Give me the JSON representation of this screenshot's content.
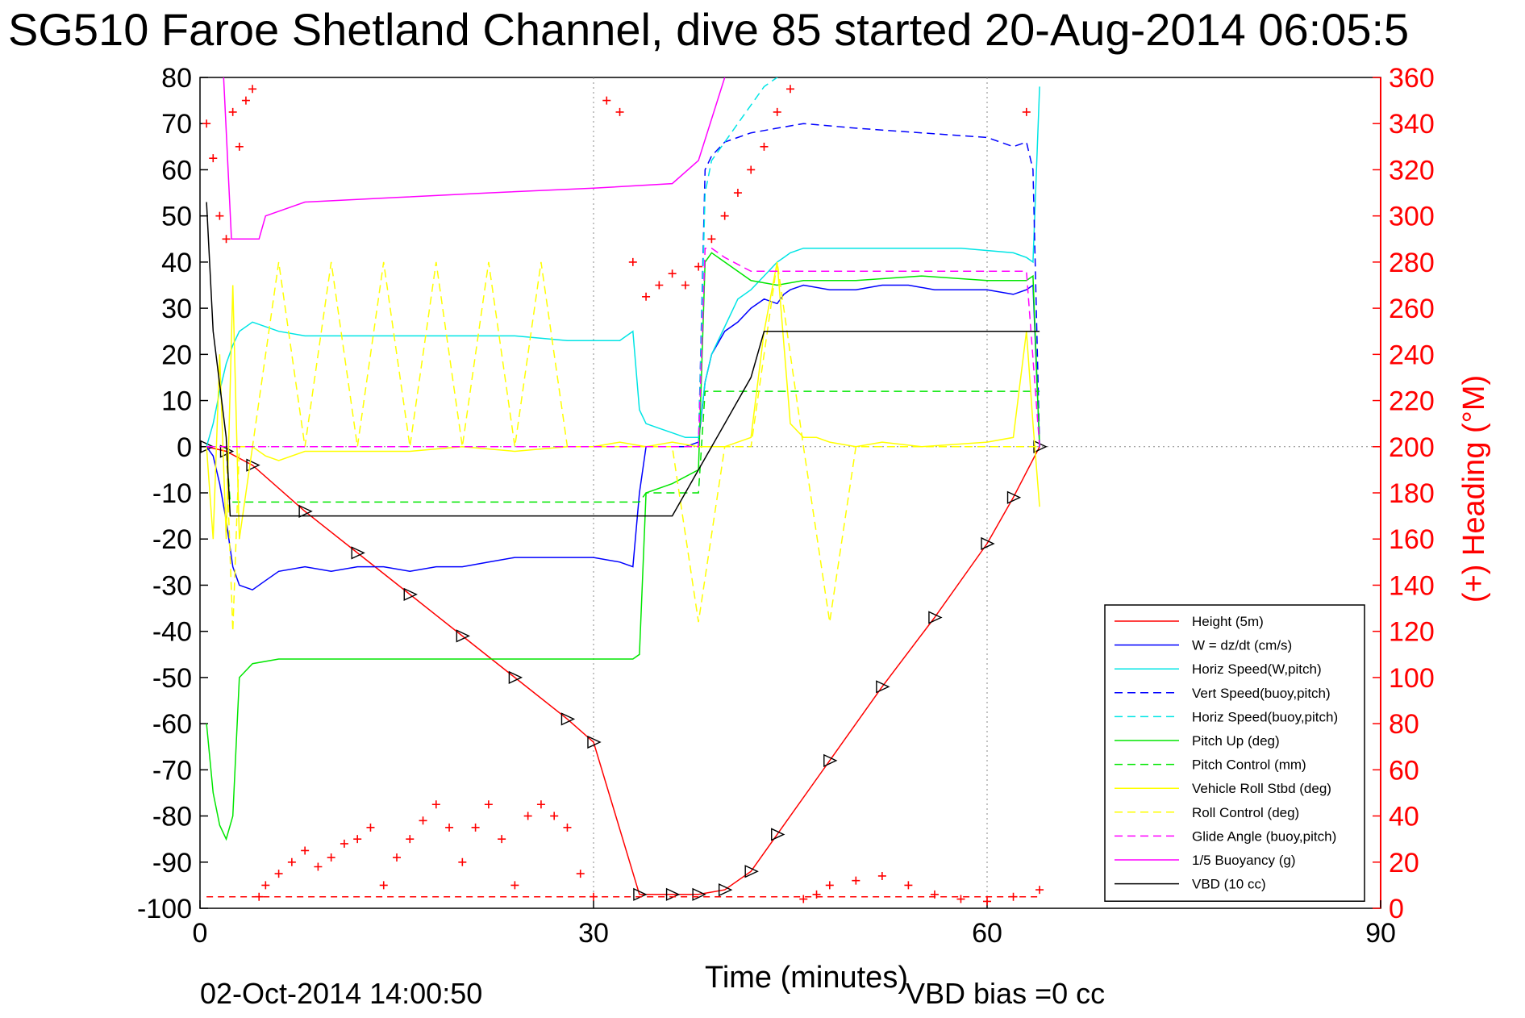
{
  "chart_data": {
    "type": "line",
    "title": "SG510 Faroe Shetland Channel, dive 85 started 20-Aug-2014 06:05:5",
    "xlabel": "Time (minutes)",
    "ylabel_right": "(+) Heading (°M)",
    "xlim": [
      0,
      90
    ],
    "ylim": [
      -100,
      80
    ],
    "ylim_right": [
      0,
      360
    ],
    "xticks": [
      "0",
      "30",
      "60",
      "90"
    ],
    "yticks": [
      "80",
      "70",
      "60",
      "50",
      "40",
      "30",
      "20",
      "10",
      "0",
      "-10",
      "-20",
      "-30",
      "-40",
      "-50",
      "-60",
      "-70",
      "-80",
      "-90",
      "-100"
    ],
    "yticks_right": [
      "360",
      "340",
      "320",
      "300",
      "280",
      "260",
      "240",
      "220",
      "200",
      "180",
      "160",
      "140",
      "120",
      "100",
      "80",
      "60",
      "40",
      "20",
      "0"
    ],
    "grid": true,
    "legend_position": "bottom-right",
    "footer_date": "02-Oct-2014 14:00:50",
    "footer_vbd": "VBD bias =0 cc",
    "series": [
      {
        "name": "Height (5m)",
        "color": "#ff0000",
        "style": "solid",
        "x": [
          0.5,
          2,
          4,
          8,
          12,
          16,
          20,
          24,
          28,
          30,
          33.5,
          36,
          38,
          40,
          42,
          44,
          48,
          52,
          56,
          60,
          62,
          64
        ],
        "y": [
          0,
          -1,
          -4,
          -14,
          -23,
          -32,
          -41,
          -50,
          -59,
          -64,
          -97,
          -97,
          -97,
          -96,
          -92,
          -84,
          -68,
          -52,
          -37,
          -21,
          -11,
          0
        ]
      },
      {
        "name": "W = dz/dt (cm/s)",
        "color": "#0000ff",
        "style": "solid",
        "x": [
          0.5,
          1,
          1.5,
          2,
          2.5,
          3,
          4,
          5,
          6,
          8,
          10,
          12,
          14,
          16,
          18,
          20,
          22,
          24,
          26,
          28,
          30,
          32,
          33,
          33.5,
          34,
          35,
          36,
          37,
          38,
          38.5,
          39,
          40,
          41,
          42,
          43,
          44,
          44.5,
          45,
          46,
          48,
          50,
          52,
          54,
          56,
          58,
          60,
          62,
          63,
          63.5,
          64
        ],
        "y": [
          0,
          -2,
          -8,
          -16,
          -26,
          -30,
          -31,
          -29,
          -27,
          -26,
          -27,
          -26,
          -26,
          -27,
          -26,
          -26,
          -25,
          -24,
          -24,
          -24,
          -24,
          -25,
          -26,
          -10,
          0,
          0,
          0,
          0,
          1,
          14,
          20,
          25,
          27,
          30,
          32,
          31,
          33,
          34,
          35,
          34,
          34,
          35,
          35,
          34,
          34,
          34,
          33,
          34,
          35,
          0
        ]
      },
      {
        "name": "Horiz Speed(W,pitch)",
        "color": "#00e5e5",
        "style": "solid",
        "x": [
          0.5,
          1,
          1.5,
          2,
          2.5,
          3,
          4,
          6,
          8,
          12,
          16,
          20,
          24,
          28,
          32,
          33,
          33.5,
          34,
          35,
          36,
          37,
          38,
          38.5,
          39,
          40,
          41,
          42,
          43,
          44,
          44.5,
          45,
          46,
          50,
          54,
          58,
          62,
          63,
          63.5,
          64
        ],
        "y": [
          0,
          5,
          12,
          18,
          22,
          25,
          27,
          25,
          24,
          24,
          24,
          24,
          24,
          23,
          23,
          25,
          8,
          5,
          4,
          3,
          2,
          2,
          14,
          20,
          26,
          32,
          34,
          37,
          40,
          41,
          42,
          43,
          43,
          43,
          43,
          42,
          41,
          40,
          78
        ]
      },
      {
        "name": "Vert Speed(buoy,pitch)",
        "color": "#0000ff",
        "style": "dashed",
        "x": [
          38,
          38.5,
          39,
          40,
          42,
          44,
          46,
          50,
          55,
          60,
          62,
          63,
          63.5,
          64
        ],
        "y": [
          0,
          60,
          63,
          66,
          68,
          69,
          70,
          69,
          68,
          67,
          65,
          66,
          60,
          0
        ]
      },
      {
        "name": "Horiz Speed(buoy,pitch)",
        "color": "#00e5e5",
        "style": "dashed",
        "x": [
          38,
          38.5,
          39,
          40,
          41,
          42,
          43,
          44,
          45
        ],
        "y": [
          0,
          55,
          62,
          66,
          70,
          74,
          78,
          80,
          82
        ]
      },
      {
        "name": "Pitch Up (deg)",
        "color": "#00e600",
        "style": "solid",
        "x": [
          0.5,
          1,
          1.5,
          2,
          2.5,
          3,
          4,
          6,
          8,
          12,
          16,
          20,
          24,
          28,
          32,
          33,
          33.5,
          34,
          36,
          38,
          38.5,
          39,
          40,
          42,
          44,
          46,
          50,
          55,
          60,
          62,
          63,
          63.5,
          64
        ],
        "y": [
          -60,
          -75,
          -82,
          -85,
          -80,
          -50,
          -47,
          -46,
          -46,
          -46,
          -46,
          -46,
          -46,
          -46,
          -46,
          -46,
          -45,
          -10,
          -8,
          -5,
          40,
          42,
          40,
          36,
          35,
          36,
          36,
          37,
          36,
          36,
          36,
          37,
          0
        ]
      },
      {
        "name": "Pitch Control (mm)",
        "color": "#00e600",
        "style": "dashed",
        "x": [
          0.5,
          2,
          2.3,
          4,
          10,
          20,
          30,
          33.5,
          34,
          38,
          38.5,
          39,
          44,
          50,
          55,
          60,
          64
        ],
        "y": [
          0,
          0,
          -12,
          -12,
          -12,
          -12,
          -12,
          -12,
          -10,
          -10,
          12,
          12,
          12,
          12,
          12,
          12,
          12
        ]
      },
      {
        "name": "Vehicle Roll Stbd (deg)",
        "color": "#ffff00",
        "style": "solid",
        "x": [
          0.5,
          1,
          1.5,
          2,
          2.5,
          3,
          4,
          5,
          6,
          8,
          10,
          12,
          16,
          20,
          24,
          28,
          30,
          32,
          34,
          36,
          38,
          40,
          42,
          43,
          44,
          45,
          46,
          47,
          48,
          50,
          52,
          55,
          60,
          62,
          63,
          63.5,
          64
        ],
        "y": [
          0,
          -20,
          20,
          -20,
          35,
          -20,
          0,
          -2,
          -3,
          -1,
          -1,
          -1,
          -1,
          0,
          -1,
          0,
          0,
          1,
          0,
          1,
          0,
          0,
          2,
          25,
          40,
          5,
          2,
          2,
          1,
          0,
          1,
          0,
          1,
          2,
          25,
          5,
          -13
        ]
      },
      {
        "name": "Roll Control (deg)",
        "color": "#ffff00",
        "style": "dashed",
        "x": [
          0.5,
          2,
          2.5,
          3,
          4,
          6,
          8,
          10,
          12,
          14,
          16,
          18,
          20,
          22,
          24,
          26,
          28,
          30,
          32,
          34,
          36,
          38,
          40,
          42,
          44,
          46,
          48,
          50,
          55,
          60,
          62,
          64
        ],
        "y": [
          0,
          0,
          -40,
          0,
          0,
          40,
          0,
          40,
          0,
          40,
          0,
          40,
          0,
          40,
          0,
          40,
          0,
          0,
          0,
          0,
          0,
          -38,
          0,
          0,
          40,
          0,
          -38,
          0,
          0,
          0,
          0,
          0
        ]
      },
      {
        "name": "Glide Angle (buoy,pitch)",
        "color": "#ff00ff",
        "style": "dashed",
        "x": [
          0.5,
          10,
          20,
          30,
          36,
          38,
          38.5,
          39,
          40,
          42,
          44,
          50,
          55,
          60,
          62,
          63,
          64
        ],
        "y": [
          0,
          0,
          0,
          0,
          0,
          0,
          43,
          43,
          41,
          38,
          38,
          38,
          38,
          38,
          38,
          38,
          0
        ]
      },
      {
        "name": "1/5 Buoyancy (g)",
        "color": "#ff00ff",
        "style": "solid",
        "x": [
          1.8,
          2.4,
          4.5,
          5,
          8,
          15,
          22,
          30,
          36,
          38,
          40
        ],
        "y": [
          80,
          45,
          45,
          50,
          53,
          54,
          55,
          56,
          57,
          62,
          80
        ]
      },
      {
        "name": "VBD (10 cc)",
        "color": "#000000",
        "style": "solid",
        "x": [
          0.5,
          1,
          2,
          2.3,
          3,
          10,
          20,
          30,
          36,
          38,
          40,
          42,
          43,
          45,
          50,
          55,
          60,
          64
        ],
        "y": [
          53,
          25,
          2,
          -15,
          -15,
          -15,
          -15,
          -15,
          -15,
          -5,
          5,
          15,
          25,
          25,
          25,
          25,
          25,
          25
        ]
      },
      {
        "name": "Heading",
        "axis": "right",
        "color": "#ff0000",
        "style": "markers",
        "x": [
          0.5,
          1,
          1.5,
          2,
          2.5,
          3,
          3.5,
          4,
          4.5,
          5,
          6,
          7,
          8,
          9,
          10,
          11,
          12,
          13,
          14,
          15,
          16,
          17,
          18,
          19,
          20,
          21,
          22,
          23,
          24,
          25,
          26,
          27,
          28,
          29,
          30,
          31,
          32,
          33,
          34,
          35,
          36,
          37,
          38,
          39,
          40,
          41,
          42,
          43,
          44,
          45,
          46,
          47,
          48,
          50,
          52,
          54,
          56,
          58,
          60,
          62,
          63,
          64
        ],
        "y": [
          340,
          325,
          300,
          290,
          345,
          330,
          350,
          355,
          5,
          10,
          15,
          20,
          25,
          18,
          22,
          28,
          30,
          35,
          10,
          22,
          30,
          38,
          45,
          35,
          20,
          35,
          45,
          30,
          10,
          40,
          45,
          40,
          35,
          15,
          5,
          350,
          345,
          280,
          265,
          270,
          275,
          270,
          278,
          290,
          300,
          310,
          320,
          330,
          345,
          355,
          4,
          6,
          10,
          12,
          14,
          10,
          6,
          4,
          3,
          5,
          345,
          8
        ]
      }
    ]
  }
}
